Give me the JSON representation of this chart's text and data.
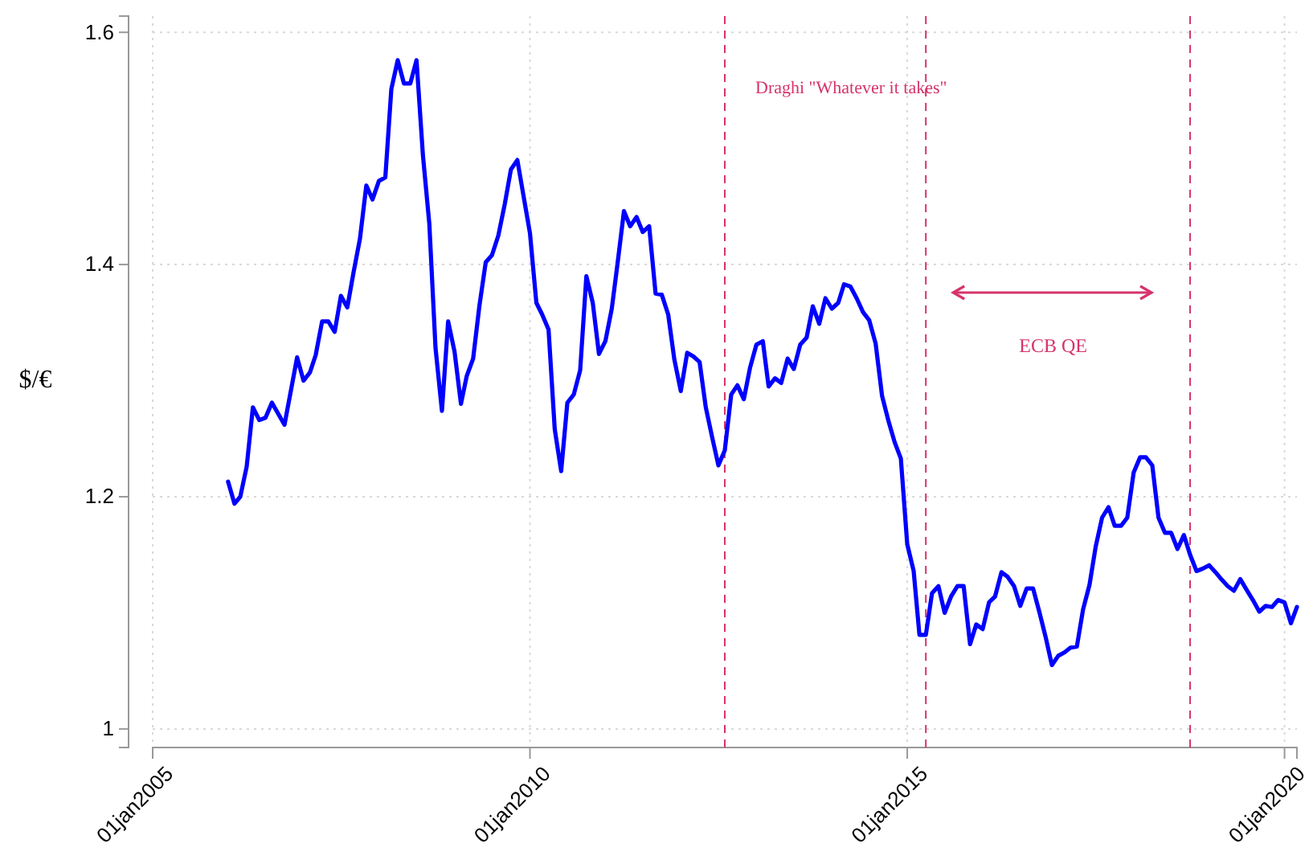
{
  "chart_data": {
    "type": "line",
    "ylabel": "$/€",
    "x": [
      "2006-01",
      "2006-02",
      "2006-03",
      "2006-04",
      "2006-05",
      "2006-06",
      "2006-07",
      "2006-08",
      "2006-10",
      "2006-12",
      "2007-01",
      "2007-02",
      "2007-03",
      "2007-04",
      "2007-05",
      "2007-06",
      "2007-07",
      "2007-08",
      "2007-09",
      "2007-10",
      "2007-11",
      "2007-12",
      "2008-01",
      "2008-02",
      "2008-03",
      "2008-04",
      "2008-05",
      "2008-06",
      "2008-07",
      "2008-08",
      "2008-09",
      "2008-10",
      "2008-11",
      "2008-12",
      "2009-01",
      "2009-02",
      "2009-03",
      "2009-04",
      "2009-05",
      "2009-06",
      "2009-07",
      "2009-08",
      "2009-09",
      "2009-10",
      "2009-11",
      "2009-12",
      "2010-01",
      "2010-02",
      "2010-03",
      "2010-04",
      "2010-05",
      "2010-06",
      "2010-07",
      "2010-08",
      "2010-09",
      "2010-10",
      "2010-11",
      "2010-12",
      "2011-01",
      "2011-02",
      "2011-03",
      "2011-04",
      "2011-05",
      "2011-06",
      "2011-07",
      "2011-08",
      "2011-09",
      "2011-10",
      "2011-11",
      "2011-12",
      "2012-01",
      "2012-02",
      "2012-03",
      "2012-04",
      "2012-05",
      "2012-06",
      "2012-07",
      "2012-08",
      "2012-09",
      "2012-10",
      "2012-11",
      "2012-12",
      "2013-01",
      "2013-02",
      "2013-03",
      "2013-04",
      "2013-05",
      "2013-06",
      "2013-07",
      "2013-08",
      "2013-09",
      "2013-10",
      "2013-11",
      "2013-12",
      "2014-01",
      "2014-02",
      "2014-03",
      "2014-04",
      "2014-05",
      "2014-06",
      "2014-07",
      "2014-08",
      "2014-09",
      "2014-10",
      "2014-11",
      "2014-12",
      "2015-01",
      "2015-02",
      "2015-03",
      "2015-04",
      "2015-05",
      "2015-06",
      "2015-07",
      "2015-08",
      "2015-09",
      "2015-10",
      "2015-11",
      "2015-12",
      "2016-01",
      "2016-02",
      "2016-03",
      "2016-04",
      "2016-05",
      "2016-06",
      "2016-07",
      "2016-08",
      "2016-09",
      "2016-10",
      "2016-11",
      "2016-12",
      "2017-01",
      "2017-02",
      "2017-03",
      "2017-04",
      "2017-05",
      "2017-06",
      "2017-07",
      "2017-08",
      "2017-09",
      "2017-10",
      "2017-11",
      "2017-12",
      "2018-01",
      "2018-02",
      "2018-03",
      "2018-04",
      "2018-05",
      "2018-06",
      "2018-07",
      "2018-08",
      "2018-09",
      "2018-10",
      "2018-11",
      "2018-12",
      "2019-01",
      "2019-02",
      "2019-03",
      "2019-04",
      "2019-05",
      "2019-06",
      "2019-07",
      "2019-08",
      "2019-09",
      "2019-10",
      "2019-11",
      "2019-12",
      "2020-01",
      "2020-02",
      "2020-03"
    ],
    "series": [
      {
        "color": "#0000ff",
        "values": [
          1.213,
          1.194,
          1.2,
          1.226,
          1.277,
          1.266,
          1.268,
          1.281,
          1.262,
          1.32,
          1.3,
          1.307,
          1.322,
          1.351,
          1.351,
          1.342,
          1.373,
          1.363,
          1.394,
          1.422,
          1.468,
          1.456,
          1.472,
          1.475,
          1.551,
          1.576,
          1.556,
          1.556,
          1.576,
          1.494,
          1.435,
          1.328,
          1.274,
          1.351,
          1.325,
          1.28,
          1.304,
          1.319,
          1.364,
          1.402,
          1.408,
          1.425,
          1.452,
          1.482,
          1.49,
          1.459,
          1.427,
          1.367,
          1.357,
          1.344,
          1.258,
          1.222,
          1.281,
          1.288,
          1.309,
          1.39,
          1.367,
          1.323,
          1.334,
          1.362,
          1.401,
          1.446,
          1.433,
          1.441,
          1.428,
          1.433,
          1.375,
          1.374,
          1.357,
          1.318,
          1.291,
          1.324,
          1.321,
          1.316,
          1.277,
          1.251,
          1.227,
          1.24,
          1.288,
          1.296,
          1.284,
          1.311,
          1.331,
          1.334,
          1.295,
          1.302,
          1.298,
          1.319,
          1.31,
          1.331,
          1.337,
          1.364,
          1.349,
          1.371,
          1.362,
          1.367,
          1.383,
          1.381,
          1.371,
          1.359,
          1.352,
          1.332,
          1.287,
          1.266,
          1.247,
          1.233,
          1.159,
          1.136,
          1.081,
          1.081,
          1.117,
          1.123,
          1.1,
          1.114,
          1.123,
          1.123,
          1.073,
          1.09,
          1.086,
          1.109,
          1.114,
          1.135,
          1.131,
          1.123,
          1.106,
          1.121,
          1.121,
          1.101,
          1.079,
          1.055,
          1.063,
          1.066,
          1.07,
          1.071,
          1.103,
          1.124,
          1.157,
          1.182,
          1.191,
          1.175,
          1.175,
          1.182,
          1.221,
          1.234,
          1.234,
          1.227,
          1.182,
          1.169,
          1.169,
          1.155,
          1.167,
          1.15,
          1.136,
          1.138,
          1.141,
          1.135,
          1.129,
          1.123,
          1.119,
          1.129,
          1.12,
          1.111,
          1.101,
          1.106,
          1.105,
          1.111,
          1.109,
          1.091,
          1.105
        ]
      }
    ],
    "xlim": [
      "2005-01-01",
      "2020-03-01"
    ],
    "xticks": [
      {
        "value": "2005-01-01",
        "label": "01jan2005"
      },
      {
        "value": "2010-01-01",
        "label": "01jan2010"
      },
      {
        "value": "2015-01-01",
        "label": "01jan2015"
      },
      {
        "value": "2020-01-01",
        "label": "01jan2020"
      }
    ],
    "ylim": [
      0.984,
      1.614
    ],
    "yticks": [
      1,
      1.2,
      1.4,
      1.6
    ],
    "ref_lines": [
      {
        "axis": "x",
        "value": "2012-08",
        "label": "Draghi \"Whatever it takes\"",
        "color": "#d6336c",
        "line_style": "dashed"
      },
      {
        "axis": "x",
        "value": "2015-04",
        "color": "#d6336c",
        "line_style": "dashed"
      },
      {
        "axis": "x",
        "value": "2018-10",
        "color": "#d6336c",
        "line_style": "dashed"
      }
    ],
    "annotations": [
      "ECB QE"
    ],
    "grid": true,
    "line_style": "solid",
    "marker": "none"
  }
}
